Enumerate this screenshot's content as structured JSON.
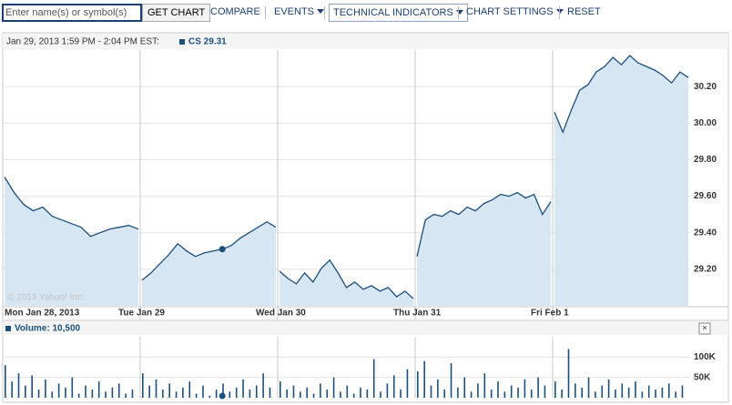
{
  "toolbar": {
    "input_placeholder": "Enter name(s) or symbol(s)",
    "get_chart": "GET CHART",
    "compare": "COMPARE",
    "events": "EVENTS",
    "technical_indicators": "TECHNICAL INDICATORS",
    "chart_settings": "CHART SETTINGS",
    "reset": "RESET"
  },
  "chart_data": {
    "type": "area",
    "header": "Jan 29, 2013 1:59 PM - 2:04 PM EST:",
    "series_label": "CS 29.31",
    "watermark": "© 2013 Yahoo! Inc.",
    "color": "#1c4f7c",
    "fill": "#d6e6f2",
    "ylim": [
      29.0,
      30.4
    ],
    "yticks": [
      {
        "value": 29.2,
        "label": "29.20"
      },
      {
        "value": 29.4,
        "label": "29.40"
      },
      {
        "value": 29.6,
        "label": "29.60"
      },
      {
        "value": 29.8,
        "label": "29.80"
      },
      {
        "value": 30.0,
        "label": "30.00"
      },
      {
        "value": 30.2,
        "label": "30.20"
      }
    ],
    "days": [
      {
        "label": "Mon Jan 28, 2013",
        "values": [
          29.705,
          29.62,
          29.555,
          29.52,
          29.54,
          29.49,
          29.47,
          29.45,
          29.43,
          29.38,
          29.4,
          29.42,
          29.43,
          29.44,
          29.42
        ]
      },
      {
        "label": "Tue Jan 29",
        "values": [
          29.14,
          29.18,
          29.23,
          29.28,
          29.34,
          29.3,
          29.27,
          29.29,
          29.3,
          29.31,
          29.33,
          29.37,
          29.4,
          29.43,
          29.46,
          29.43
        ]
      },
      {
        "label": "Wed Jan 30",
        "values": [
          29.19,
          29.15,
          29.12,
          29.18,
          29.13,
          29.205,
          29.25,
          29.18,
          29.1,
          29.13,
          29.09,
          29.11,
          29.08,
          29.1,
          29.05,
          29.08,
          29.04
        ]
      },
      {
        "label": "Thu Jan 31",
        "values": [
          29.27,
          29.47,
          29.5,
          29.49,
          29.52,
          29.5,
          29.54,
          29.52,
          29.56,
          29.58,
          29.61,
          29.6,
          29.62,
          29.59,
          29.61,
          29.5,
          29.57
        ]
      },
      {
        "label": "Fri Feb 1",
        "values": [
          30.06,
          29.95,
          30.07,
          30.18,
          30.21,
          30.28,
          30.31,
          30.36,
          30.32,
          30.37,
          30.33,
          30.31,
          30.29,
          30.26,
          30.22,
          30.28,
          30.25
        ]
      }
    ],
    "volume": {
      "label": "Volume: 10,500",
      "close": "×",
      "color": "#1c4f7c",
      "ylim": [
        0,
        150000
      ],
      "yticks": [
        {
          "value": 50000,
          "label": "50K"
        },
        {
          "value": 100000,
          "label": "100K"
        }
      ],
      "days": [
        [
          80000,
          40000,
          60000,
          30000,
          55000,
          20000,
          45000,
          15000,
          35000,
          25000,
          50000,
          10000,
          30000,
          20000,
          40000,
          15000,
          25000,
          35000,
          10000,
          20000
        ],
        [
          60000,
          30000,
          45000,
          20000,
          35000,
          15000,
          25000,
          40000,
          10000,
          30000,
          5000,
          20000,
          35000,
          15000,
          25000,
          45000,
          20000,
          30000,
          60000,
          25000
        ],
        [
          40000,
          20000,
          30000,
          15000,
          25000,
          10000,
          35000,
          20000,
          50000,
          15000,
          30000,
          10000,
          25000,
          20000,
          95000,
          15000,
          35000,
          55000,
          20000,
          70000
        ],
        [
          65000,
          90000,
          30000,
          45000,
          20000,
          85000,
          25000,
          50000,
          15000,
          35000,
          60000,
          20000,
          40000,
          15000,
          30000,
          25000,
          45000,
          20000,
          50000,
          30000
        ],
        [
          40000,
          20000,
          120000,
          35000,
          25000,
          50000,
          15000,
          30000,
          45000,
          20000,
          35000,
          25000,
          40000,
          15000,
          30000,
          20000,
          25000,
          35000,
          15000,
          30000
        ]
      ]
    }
  }
}
